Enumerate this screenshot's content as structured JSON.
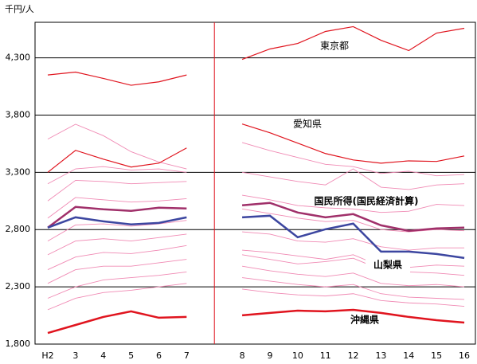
{
  "chart_data": {
    "type": "line",
    "y_unit_label": "千円/人",
    "categories": [
      "H2",
      "3",
      "4",
      "5",
      "6",
      "7",
      null,
      "8",
      "9",
      "10",
      "11",
      "12",
      "13",
      "14",
      "15",
      "16"
    ],
    "ylim": [
      1800,
      4610
    ],
    "yticks": [
      {
        "value": 1800,
        "label": "1,800"
      },
      {
        "value": 2300,
        "label": "2,300"
      },
      {
        "value": 2800,
        "label": "2,800"
      },
      {
        "value": 3300,
        "label": "3,300"
      },
      {
        "value": 3800,
        "label": "3,800"
      },
      {
        "value": 4300,
        "label": "4,300"
      }
    ],
    "grid": true,
    "series": [
      {
        "color": "#f08ab4",
        "values": [
          3590,
          3720,
          3620,
          3480,
          3390,
          3330,
          null,
          3560,
          3490,
          3430,
          3370,
          3350,
          3290,
          3310,
          3270,
          3280
        ]
      },
      {
        "color": "#f08ab4",
        "values": [
          3200,
          3330,
          3350,
          3320,
          3330,
          3300,
          null,
          3300,
          3260,
          3220,
          3190,
          3330,
          3170,
          3150,
          3190,
          3200
        ]
      },
      {
        "color": "#f08ab4",
        "values": [
          3050,
          3230,
          3220,
          3200,
          3210,
          3220,
          null,
          3100,
          3060,
          3010,
          2990,
          2980,
          2950,
          2960,
          3020,
          3010
        ]
      },
      {
        "color": "#f08ab4",
        "values": [
          2900,
          3080,
          3060,
          3040,
          3050,
          3070,
          null,
          2980,
          2940,
          2900,
          2870,
          2880,
          2800,
          2780,
          2800,
          2790
        ]
      },
      {
        "color": "#f08ab4",
        "values": [
          2700,
          2840,
          2850,
          2830,
          2850,
          2880,
          null,
          2780,
          2760,
          2700,
          2690,
          2720,
          2650,
          2620,
          2640,
          2640
        ]
      },
      {
        "color": "#f08ab4",
        "values": [
          2580,
          2700,
          2720,
          2700,
          2730,
          2760,
          null,
          2620,
          2600,
          2570,
          2540,
          2580,
          2480,
          2470,
          2490,
          2480
        ]
      },
      {
        "color": "#f08ab4",
        "values": [
          2450,
          2560,
          2600,
          2590,
          2620,
          2660,
          null,
          2580,
          2540,
          2500,
          2520,
          2550,
          2450,
          2430,
          2420,
          2400
        ]
      },
      {
        "color": "#f08ab4",
        "values": [
          2330,
          2450,
          2480,
          2480,
          2510,
          2540,
          null,
          2480,
          2440,
          2410,
          2390,
          2420,
          2330,
          2310,
          2320,
          2300
        ]
      },
      {
        "color": "#f08ab4",
        "values": [
          2200,
          2300,
          2360,
          2380,
          2400,
          2430,
          null,
          2380,
          2350,
          2320,
          2300,
          2320,
          2240,
          2210,
          2200,
          2190
        ]
      },
      {
        "color": "#f08ab4",
        "values": [
          2100,
          2200,
          2250,
          2270,
          2300,
          2330,
          null,
          2280,
          2250,
          2230,
          2220,
          2240,
          2180,
          2160,
          2150,
          2130
        ]
      },
      {
        "name": "東京都",
        "color": "#e0141e",
        "values": [
          4150,
          4175,
          4120,
          4060,
          4090,
          4150,
          null,
          4286,
          4377,
          4425,
          4530,
          4572,
          4453,
          4363,
          4516,
          4558
        ]
      },
      {
        "name": "愛知県",
        "color": "#e0141e",
        "values": [
          3300,
          3492,
          3415,
          3346,
          3380,
          3513,
          null,
          3722,
          3645,
          3555,
          3464,
          3408,
          3380,
          3400,
          3395,
          3443
        ]
      },
      {
        "name": "国民所得(国民経済計算)",
        "color": "#a0306a",
        "values": [
          2817,
          2998,
          2977,
          2963,
          2991,
          2984,
          null,
          3012,
          3033,
          2949,
          2907,
          2935,
          2837,
          2789,
          2810,
          2817
        ]
      },
      {
        "name": "山梨県",
        "color": "#3c46a0",
        "values": [
          2817,
          2907,
          2872,
          2845,
          2858,
          2907,
          null,
          2907,
          2921,
          2733,
          2803,
          2852,
          2608,
          2608,
          2587,
          2552
        ]
      },
      {
        "name": "沖縄県",
        "color": "#e0141e",
        "values": [
          1897,
          1967,
          2037,
          2086,
          2030,
          2037,
          null,
          2051,
          2072,
          2092,
          2086,
          2099,
          2072,
          2037,
          2009,
          1988
        ]
      }
    ]
  }
}
